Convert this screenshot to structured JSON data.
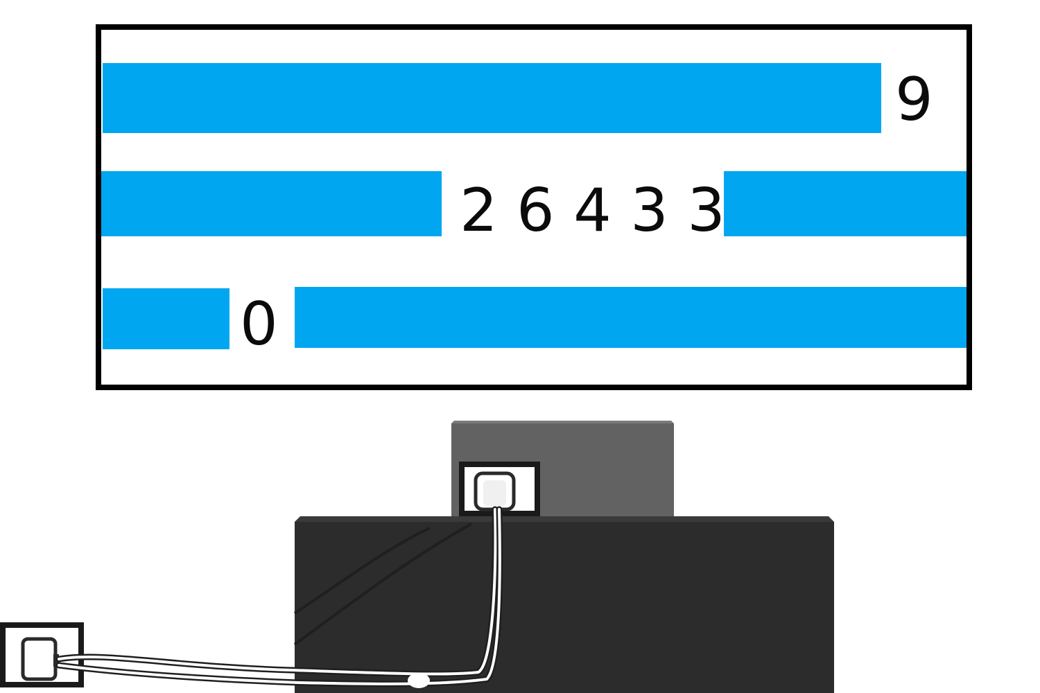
{
  "display": {
    "rows": [
      {
        "digits": "9"
      },
      {
        "digits": "2 6 4 3 3"
      },
      {
        "digits": "0"
      }
    ],
    "bar_color": "#00a7f0",
    "border_color": "#000000"
  },
  "scene": {
    "device_colors": {
      "top_block": "#626262",
      "base_block": "#2c2c2c",
      "cable": "#ffffff"
    },
    "icons": [
      "wall-outlet-icon",
      "device-port-icon",
      "power-cable-icon"
    ]
  }
}
